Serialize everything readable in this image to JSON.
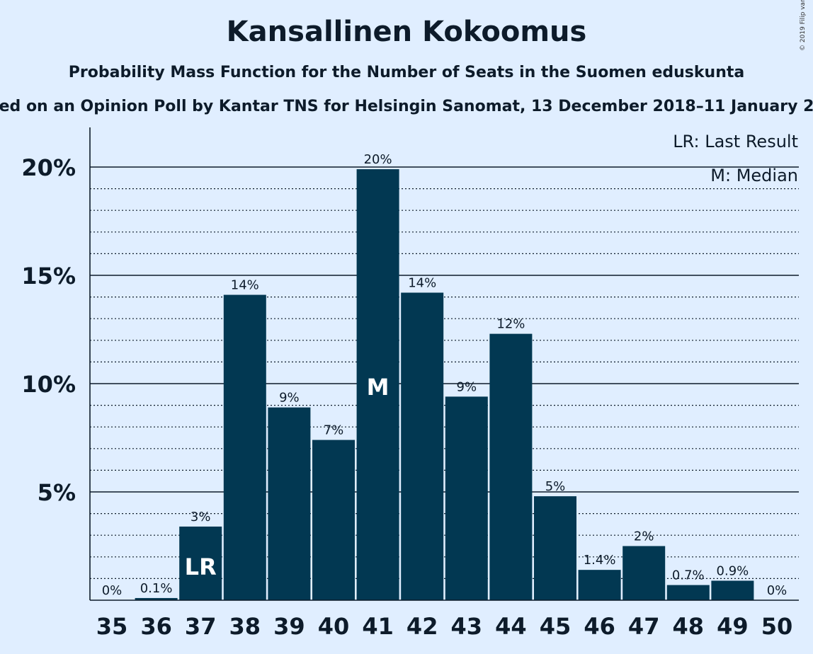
{
  "copyright": "© 2019 Filip van Laenen",
  "chart_data": {
    "type": "bar",
    "title": "Kansallinen Kokoomus",
    "subtitle": "Probability Mass Function for the Number of Seats in the Suomen eduskunta",
    "subtitle2": "ed on an Opinion Poll by Kantar TNS for Helsingin Sanomat, 13 December 2018–11 January 2",
    "categories": [
      "35",
      "36",
      "37",
      "38",
      "39",
      "40",
      "41",
      "42",
      "43",
      "44",
      "45",
      "46",
      "47",
      "48",
      "49",
      "50"
    ],
    "values": [
      0,
      0.1,
      3.4,
      14.1,
      8.9,
      7.4,
      19.9,
      14.2,
      9.4,
      12.3,
      4.8,
      1.4,
      2.5,
      0.7,
      0.9,
      0
    ],
    "data_labels": [
      "0%",
      "0.1%",
      "3%",
      "14%",
      "9%",
      "7%",
      "20%",
      "14%",
      "9%",
      "12%",
      "5%",
      "1.4%",
      "2%",
      "0.7%",
      "0.9%",
      "0%"
    ],
    "ylim": [
      0,
      20
    ],
    "yticks": [
      5,
      10,
      15,
      20
    ],
    "ytick_labels": [
      "5%",
      "10%",
      "15%",
      "20%"
    ],
    "minor_grid_step": 1,
    "bar_color": "#023852",
    "last_result": {
      "category": "37",
      "label": "LR"
    },
    "median": {
      "category": "41",
      "label": "M"
    },
    "legend": [
      "LR: Last Result",
      "M: Median"
    ]
  }
}
